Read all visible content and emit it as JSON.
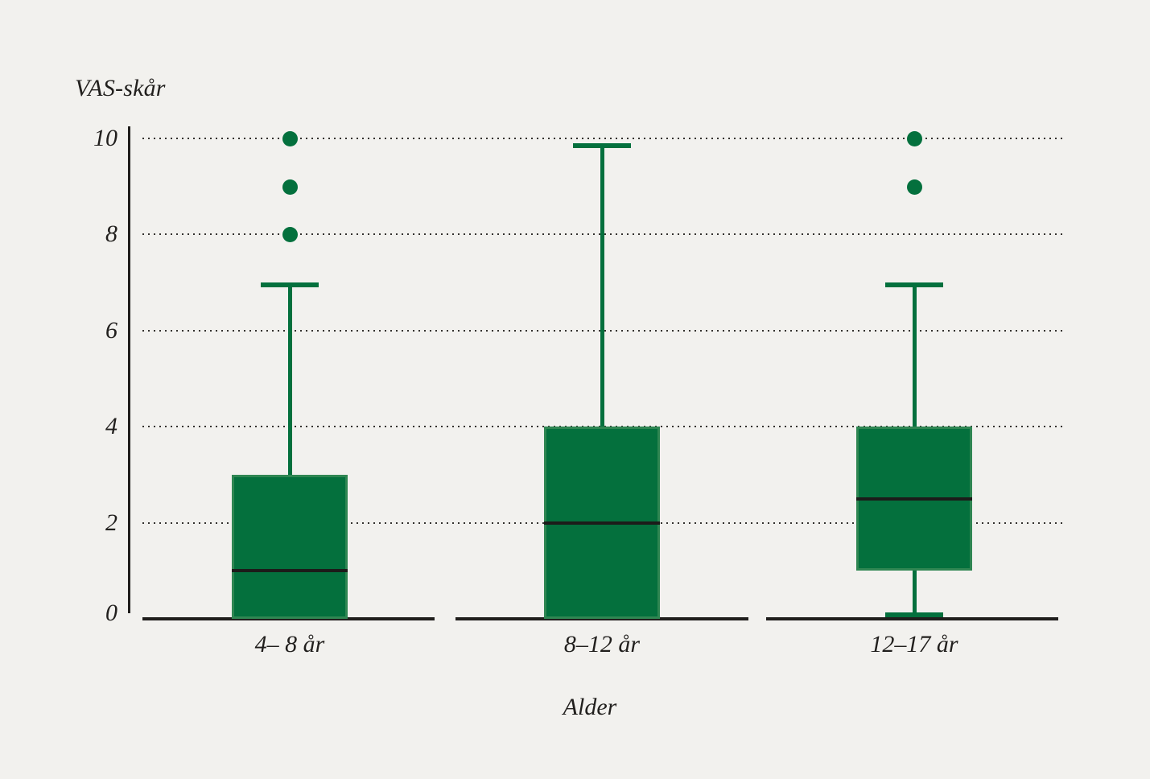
{
  "chart_data": {
    "type": "boxplot",
    "title": "",
    "ylabel": "VAS-skår",
    "xlabel": "Alder",
    "ylim": [
      0,
      10
    ],
    "yticks": [
      0,
      2,
      4,
      6,
      8,
      10
    ],
    "grid_values": [
      2,
      4,
      6,
      8,
      10
    ],
    "grid_style": "dotted",
    "legend": "none",
    "categories": [
      "4– 8 år",
      "8–12 år",
      "12–17 år"
    ],
    "series": [
      {
        "label": "4– 8 år",
        "whisker_low": 0,
        "q1": 0,
        "median": 1,
        "q3": 3,
        "whisker_high": 7,
        "outliers": [
          10,
          9,
          8
        ]
      },
      {
        "label": "8–12 år",
        "whisker_low": 0,
        "q1": 0,
        "median": 2,
        "q3": 4,
        "whisker_high": 9.9,
        "outliers": []
      },
      {
        "label": "12–17 år",
        "whisker_low": 0,
        "q1": 1,
        "median": 2.5,
        "q3": 4,
        "whisker_high": 7,
        "outliers": [
          10,
          9
        ]
      }
    ],
    "colors": {
      "background": "#f2f1ee",
      "box_fill": "#04703d",
      "box_edge": "#2f8652",
      "median": "#1c1c1a",
      "axis": "#201e1c",
      "grid_dots": "#34322f",
      "text": "#211f1d"
    }
  }
}
